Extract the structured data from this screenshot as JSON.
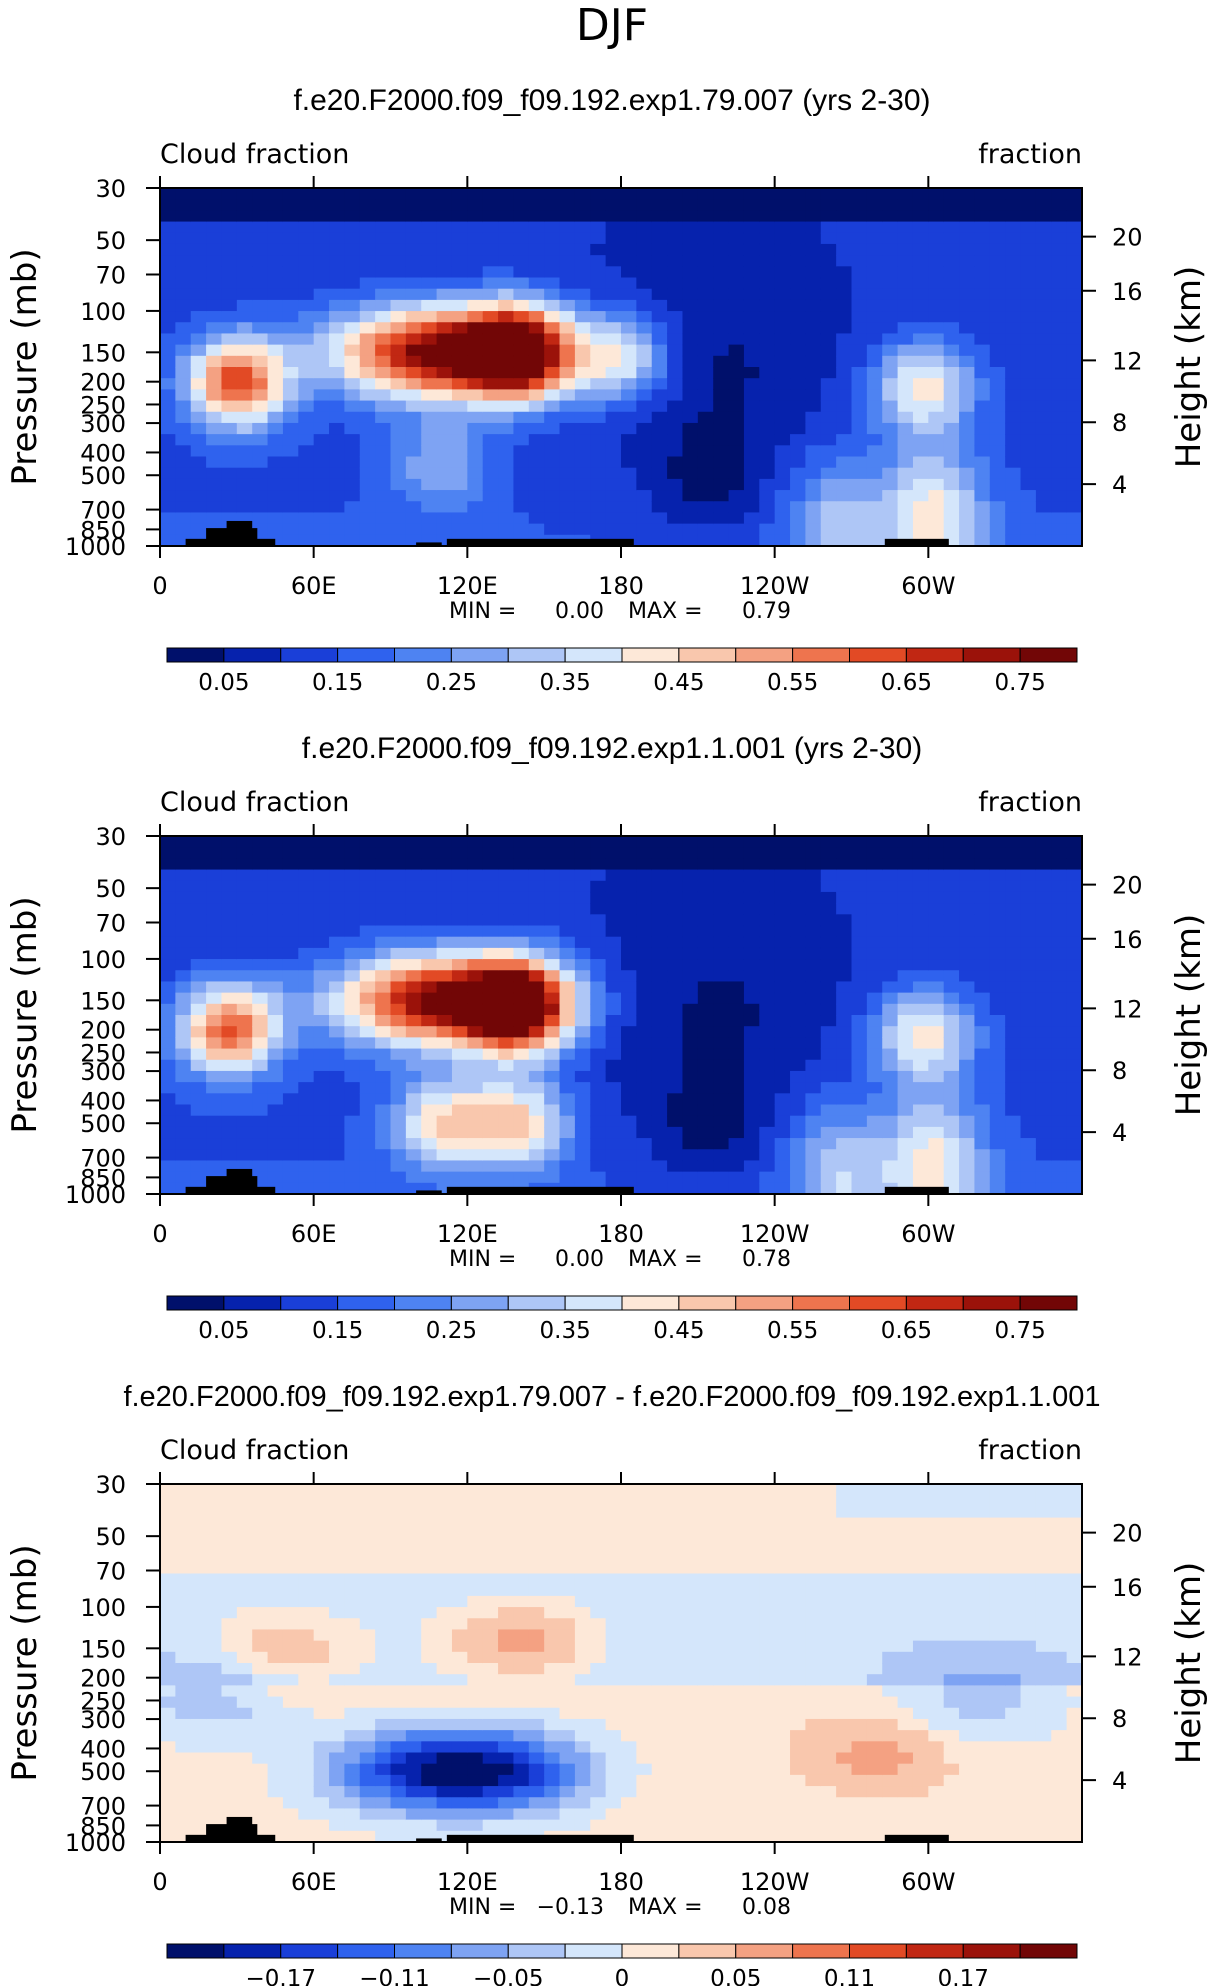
{
  "figure_title": "DJF",
  "chart_data": [
    {
      "type": "heatmap",
      "title": "f.e20.F2000.f09_f09.192.exp1.79.007 (yrs 2-30)",
      "left_label": "Cloud fraction",
      "right_label": "fraction",
      "ylabel": "Pressure (mb)",
      "ylabel2": "Height (km)",
      "pressure_ticks": [
        "30",
        "50",
        "70",
        "100",
        "150",
        "200",
        "250",
        "300",
        "400",
        "500",
        "700",
        "850",
        "1000"
      ],
      "height_ticks": [
        "20",
        "16",
        "12",
        "8",
        "4"
      ],
      "xticks": [
        "0",
        "60E",
        "120E",
        "180",
        "120W",
        "60W"
      ],
      "min_label": "MIN =",
      "min_value": "0.00",
      "max_label": "MAX =",
      "max_value": "0.79",
      "colorbar_labels": [
        "0.05",
        "0.15",
        "0.25",
        "0.35",
        "0.45",
        "0.55",
        "0.65",
        "0.75"
      ],
      "colorbar_colors": [
        "#00106b",
        "#0622ad",
        "#1a3fd8",
        "#2f62ee",
        "#4e83f2",
        "#7ea3f3",
        "#aec6f6",
        "#d4e6fb",
        "#fde8d8",
        "#f9c7ad",
        "#f4a182",
        "#ee744e",
        "#e24a25",
        "#c12713",
        "#9b120a",
        "#720606"
      ],
      "features": [
        {
          "lon": 30,
          "p": 200,
          "value": 0.62
        },
        {
          "lon": 110,
          "p": 150,
          "value": 0.79
        },
        {
          "lon": 140,
          "p": 150,
          "value": 0.68
        },
        {
          "lon": 180,
          "p": 160,
          "value": 0.4
        },
        {
          "lon": 298,
          "p": 210,
          "value": 0.42
        },
        {
          "lon": 302,
          "p": 750,
          "value": 0.4
        },
        {
          "lon": 265,
          "p": 800,
          "value": 0.3
        },
        {
          "lon": 110,
          "p": 450,
          "value": 0.28
        },
        {
          "lon": 215,
          "p": 550,
          "value": 0.04
        }
      ]
    },
    {
      "type": "heatmap",
      "title": "f.e20.F2000.f09_f09.192.exp1.1.001 (yrs 2-30)",
      "left_label": "Cloud fraction",
      "right_label": "fraction",
      "ylabel": "Pressure (mb)",
      "ylabel2": "Height (km)",
      "pressure_ticks": [
        "30",
        "50",
        "70",
        "100",
        "150",
        "200",
        "250",
        "300",
        "400",
        "500",
        "700",
        "850",
        "1000"
      ],
      "height_ticks": [
        "20",
        "16",
        "12",
        "8",
        "4"
      ],
      "xticks": [
        "0",
        "60E",
        "120E",
        "180",
        "120W",
        "60W"
      ],
      "min_label": "MIN =",
      "min_value": "0.00",
      "max_label": "MAX =",
      "max_value": "0.78",
      "colorbar_labels": [
        "0.05",
        "0.15",
        "0.25",
        "0.35",
        "0.45",
        "0.55",
        "0.65",
        "0.75"
      ],
      "colorbar_colors": [
        "#00106b",
        "#0622ad",
        "#1a3fd8",
        "#2f62ee",
        "#4e83f2",
        "#7ea3f3",
        "#aec6f6",
        "#d4e6fb",
        "#fde8d8",
        "#f9c7ad",
        "#f4a182",
        "#ee744e",
        "#e24a25",
        "#c12713",
        "#9b120a",
        "#720606"
      ],
      "features": [
        {
          "lon": 27,
          "p": 200,
          "value": 0.6
        },
        {
          "lon": 112,
          "p": 150,
          "value": 0.78
        },
        {
          "lon": 140,
          "p": 160,
          "value": 0.66
        },
        {
          "lon": 110,
          "p": 500,
          "value": 0.42
        },
        {
          "lon": 140,
          "p": 500,
          "value": 0.44
        },
        {
          "lon": 298,
          "p": 210,
          "value": 0.42
        },
        {
          "lon": 302,
          "p": 750,
          "value": 0.4
        },
        {
          "lon": 265,
          "p": 820,
          "value": 0.32
        },
        {
          "lon": 215,
          "p": 550,
          "value": 0.04
        }
      ]
    },
    {
      "type": "heatmap",
      "title": "f.e20.F2000.f09_f09.192.exp1.79.007 - f.e20.F2000.f09_f09.192.exp1.1.001",
      "left_label": "Cloud fraction",
      "right_label": "fraction",
      "ylabel": "Pressure (mb)",
      "ylabel2": "Height (km)",
      "pressure_ticks": [
        "30",
        "50",
        "70",
        "100",
        "150",
        "200",
        "250",
        "300",
        "400",
        "500",
        "700",
        "850",
        "1000"
      ],
      "height_ticks": [
        "20",
        "16",
        "12",
        "8",
        "4"
      ],
      "xticks": [
        "0",
        "60E",
        "120E",
        "180",
        "120W",
        "60W"
      ],
      "min_label": "MIN =",
      "min_value": "−0.13",
      "max_label": "MAX =",
      "max_value": "0.08",
      "colorbar_labels": [
        "−0.17",
        "−0.11",
        "−0.05",
        "0",
        "0.05",
        "0.11",
        "0.17"
      ],
      "colorbar_colors": [
        "#00106b",
        "#0622ad",
        "#1a3fd8",
        "#2f62ee",
        "#4e83f2",
        "#7ea3f3",
        "#aec6f6",
        "#d4e6fb",
        "#fde8d8",
        "#f9c7ad",
        "#f4a182",
        "#ee744e",
        "#e24a25",
        "#c12713",
        "#9b120a",
        "#720606"
      ],
      "features": [
        {
          "lon": 110,
          "p": 500,
          "value": -0.13
        },
        {
          "lon": 140,
          "p": 500,
          "value": -0.12
        },
        {
          "lon": 85,
          "p": 500,
          "value": -0.06
        },
        {
          "lon": 50,
          "p": 150,
          "value": 0.06
        },
        {
          "lon": 140,
          "p": 140,
          "value": 0.08
        },
        {
          "lon": 20,
          "p": 250,
          "value": -0.05
        },
        {
          "lon": 318,
          "p": 250,
          "value": -0.05
        },
        {
          "lon": 280,
          "p": 420,
          "value": 0.05
        }
      ]
    }
  ]
}
